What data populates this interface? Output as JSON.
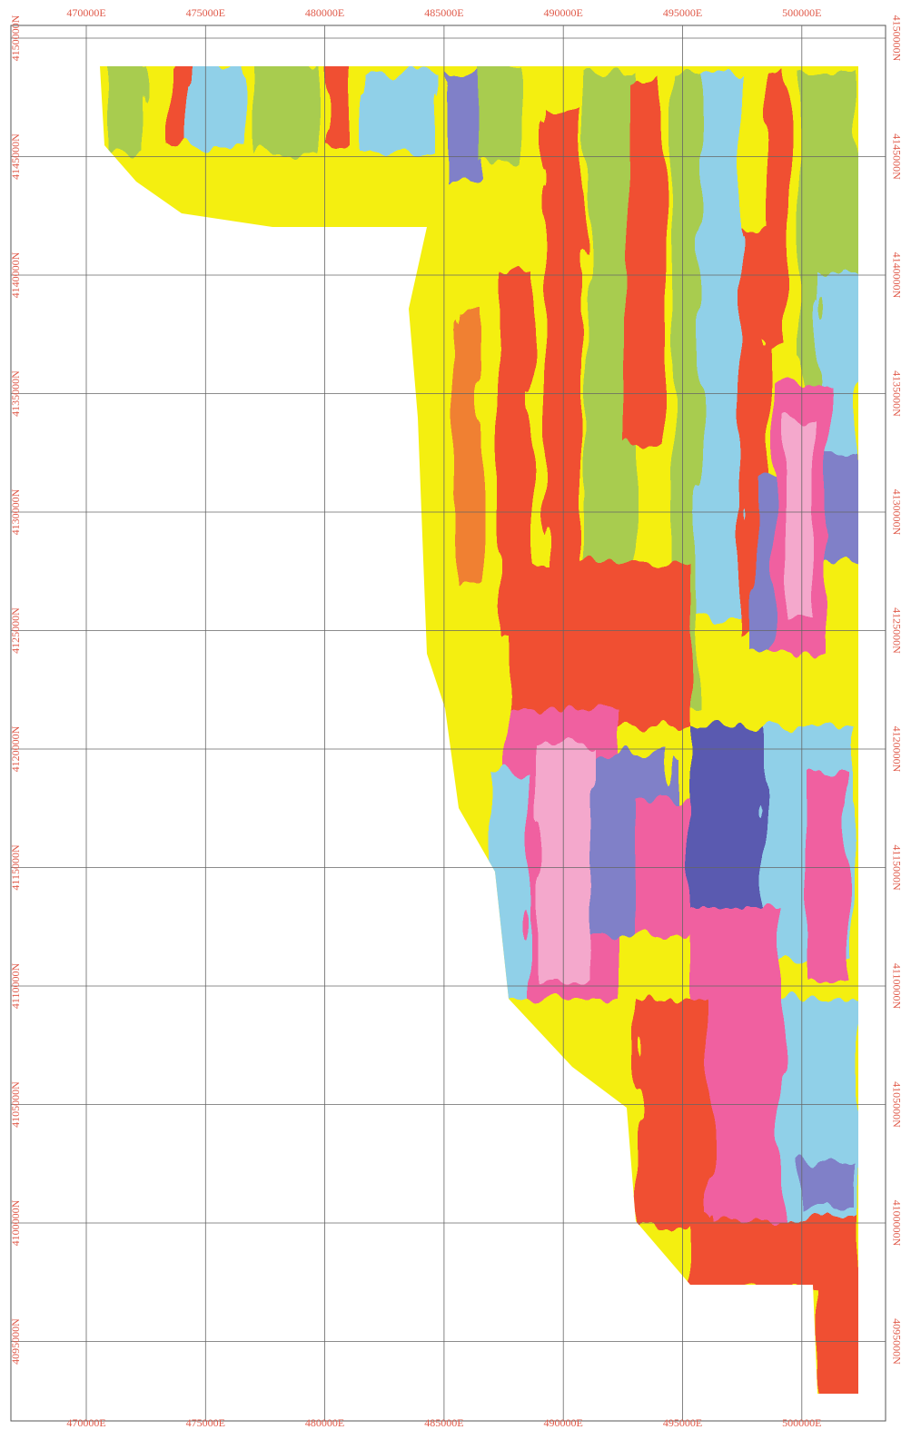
{
  "map": {
    "eastings": [
      "470000E",
      "475000E",
      "480000E",
      "485000E",
      "490000E",
      "495000E",
      "500000E"
    ],
    "northings": [
      "4150000N",
      "4145000N",
      "4140000N",
      "4135000N",
      "4130000N",
      "4125000N",
      "4120000N",
      "4115000N",
      "4110000N",
      "4105000N",
      "4100000N",
      "4095000N"
    ]
  }
}
